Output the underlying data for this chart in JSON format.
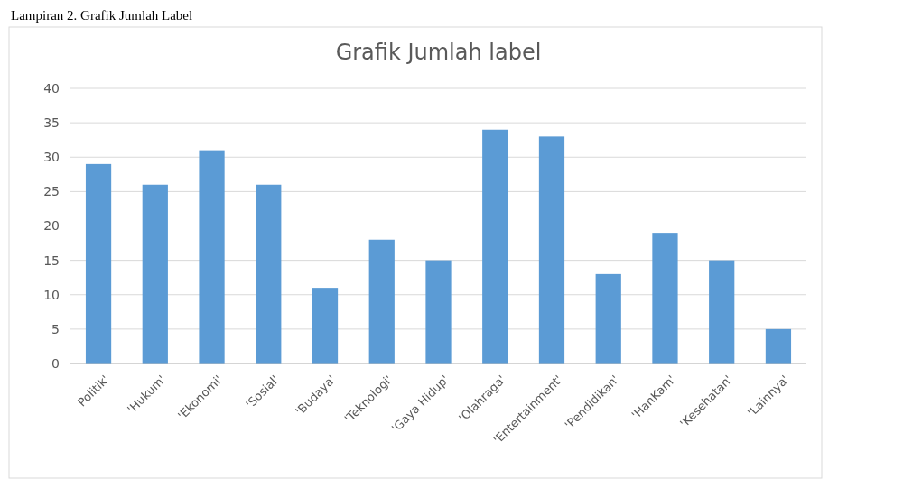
{
  "chart_data": {
    "type": "bar",
    "title": "Grafik Jumlah label",
    "annotations": [
      "Lampiran 2. Grafik Jumlah Label"
    ],
    "categories": [
      "Politik'",
      "'Hukum'",
      "'Ekonomi'",
      "'Sosial'",
      "'Budaya'",
      "'Teknologi'",
      "'Gaya Hidup'",
      "'Olahraga'",
      "'Entertainment'",
      "'Pendidikan'",
      "'HanKam'",
      "'Kesehatan'",
      "'Lainnya'"
    ],
    "values": [
      29,
      26,
      31,
      26,
      11,
      18,
      15,
      34,
      33,
      13,
      19,
      15,
      5
    ],
    "color": "#5b9bd5",
    "ylim": [
      0,
      40
    ],
    "yticks": [
      0,
      5,
      10,
      15,
      20,
      25,
      30,
      35,
      40
    ],
    "grid": "y"
  }
}
